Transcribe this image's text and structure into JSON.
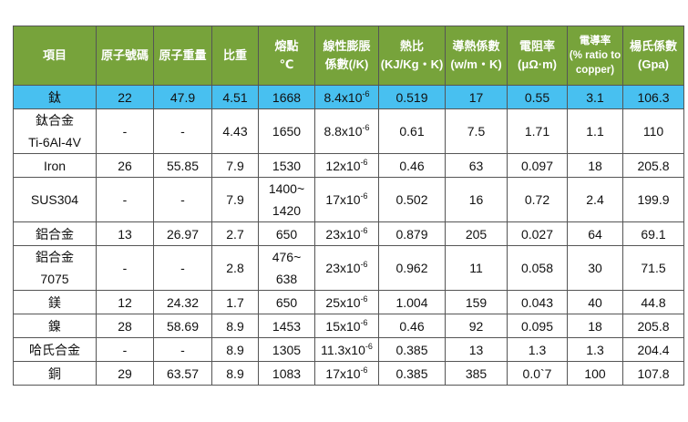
{
  "table": {
    "header": [
      [
        "項目"
      ],
      [
        "原子號碼"
      ],
      [
        "原子重量"
      ],
      [
        "比重"
      ],
      [
        "熔點",
        "℃"
      ],
      [
        "線性膨脹",
        "係數(/K)"
      ],
      [
        "熱比",
        "(KJ/Kg・K)"
      ],
      [
        "導熱係數",
        "(w/m・K)"
      ],
      [
        "電阻率",
        "(μΩ·m)"
      ],
      [
        "電導率",
        "(% ratio to",
        "copper)"
      ],
      [
        "楊氏係數",
        "(Gpa)"
      ]
    ],
    "rows": [
      [
        [
          "鈦"
        ],
        [
          "22"
        ],
        [
          "47.9"
        ],
        [
          "4.51"
        ],
        [
          "1668"
        ],
        {
          "base": "8.4x10",
          "exp": "-6"
        },
        [
          "0.519"
        ],
        [
          "17"
        ],
        [
          "0.55"
        ],
        [
          "3.1"
        ],
        [
          "106.3"
        ]
      ],
      [
        [
          "鈦合金",
          "Ti-6Al-4V"
        ],
        [
          "-"
        ],
        [
          "-"
        ],
        [
          "4.43"
        ],
        [
          "1650"
        ],
        {
          "base": "8.8x10",
          "exp": "-6"
        },
        [
          "0.61"
        ],
        [
          "7.5"
        ],
        [
          "1.71"
        ],
        [
          "1.1"
        ],
        [
          "110"
        ]
      ],
      [
        [
          "Iron"
        ],
        [
          "26"
        ],
        [
          "55.85"
        ],
        [
          "7.9"
        ],
        [
          "1530"
        ],
        {
          "base": "12x10",
          "exp": "-6"
        },
        [
          "0.46"
        ],
        [
          "63"
        ],
        [
          "0.097"
        ],
        [
          "18"
        ],
        [
          "205.8"
        ]
      ],
      [
        [
          "SUS304"
        ],
        [
          "-"
        ],
        [
          "-"
        ],
        [
          "7.9"
        ],
        [
          "1400~",
          "1420"
        ],
        {
          "base": "17x10",
          "exp": "-6"
        },
        [
          "0.502"
        ],
        [
          "16"
        ],
        [
          "0.72"
        ],
        [
          "2.4"
        ],
        [
          "199.9"
        ]
      ],
      [
        [
          "鋁合金"
        ],
        [
          "13"
        ],
        [
          "26.97"
        ],
        [
          "2.7"
        ],
        [
          "650"
        ],
        {
          "base": "23x10",
          "exp": "-6"
        },
        [
          "0.879"
        ],
        [
          "205"
        ],
        [
          "0.027"
        ],
        [
          "64"
        ],
        [
          "69.1"
        ]
      ],
      [
        [
          "鋁合金",
          "7075"
        ],
        [
          "-"
        ],
        [
          "-"
        ],
        [
          "2.8"
        ],
        [
          "476~",
          "638"
        ],
        {
          "base": "23x10",
          "exp": "-6"
        },
        [
          "0.962"
        ],
        [
          "11"
        ],
        [
          "0.058"
        ],
        [
          "30"
        ],
        [
          "71.5"
        ]
      ],
      [
        [
          "鎂"
        ],
        [
          "12"
        ],
        [
          "24.32"
        ],
        [
          "1.7"
        ],
        [
          "650"
        ],
        {
          "base": "25x10",
          "exp": "-6"
        },
        [
          "1.004"
        ],
        [
          "159"
        ],
        [
          "0.043"
        ],
        [
          "40"
        ],
        [
          "44.8"
        ]
      ],
      [
        [
          "鎳"
        ],
        [
          "28"
        ],
        [
          "58.69"
        ],
        [
          "8.9"
        ],
        [
          "1453"
        ],
        {
          "base": "15x10",
          "exp": "-6"
        },
        [
          "0.46"
        ],
        [
          "92"
        ],
        [
          "0.095"
        ],
        [
          "18"
        ],
        [
          "205.8"
        ]
      ],
      [
        [
          "哈氏合金"
        ],
        [
          "-"
        ],
        [
          "-"
        ],
        [
          "8.9"
        ],
        [
          "1305"
        ],
        {
          "base": "11.3x10",
          "exp": "-6"
        },
        [
          "0.385"
        ],
        [
          "13"
        ],
        [
          "1.3"
        ],
        [
          "1.3"
        ],
        [
          "204.4"
        ]
      ],
      [
        [
          "銅"
        ],
        [
          "29"
        ],
        [
          "63.57"
        ],
        [
          "8.9"
        ],
        [
          "1083"
        ],
        {
          "base": "17x10",
          "exp": "-6"
        },
        [
          "0.385"
        ],
        [
          "385"
        ],
        [
          "0.0`7"
        ],
        [
          "100"
        ],
        [
          "107.8"
        ]
      ]
    ]
  }
}
